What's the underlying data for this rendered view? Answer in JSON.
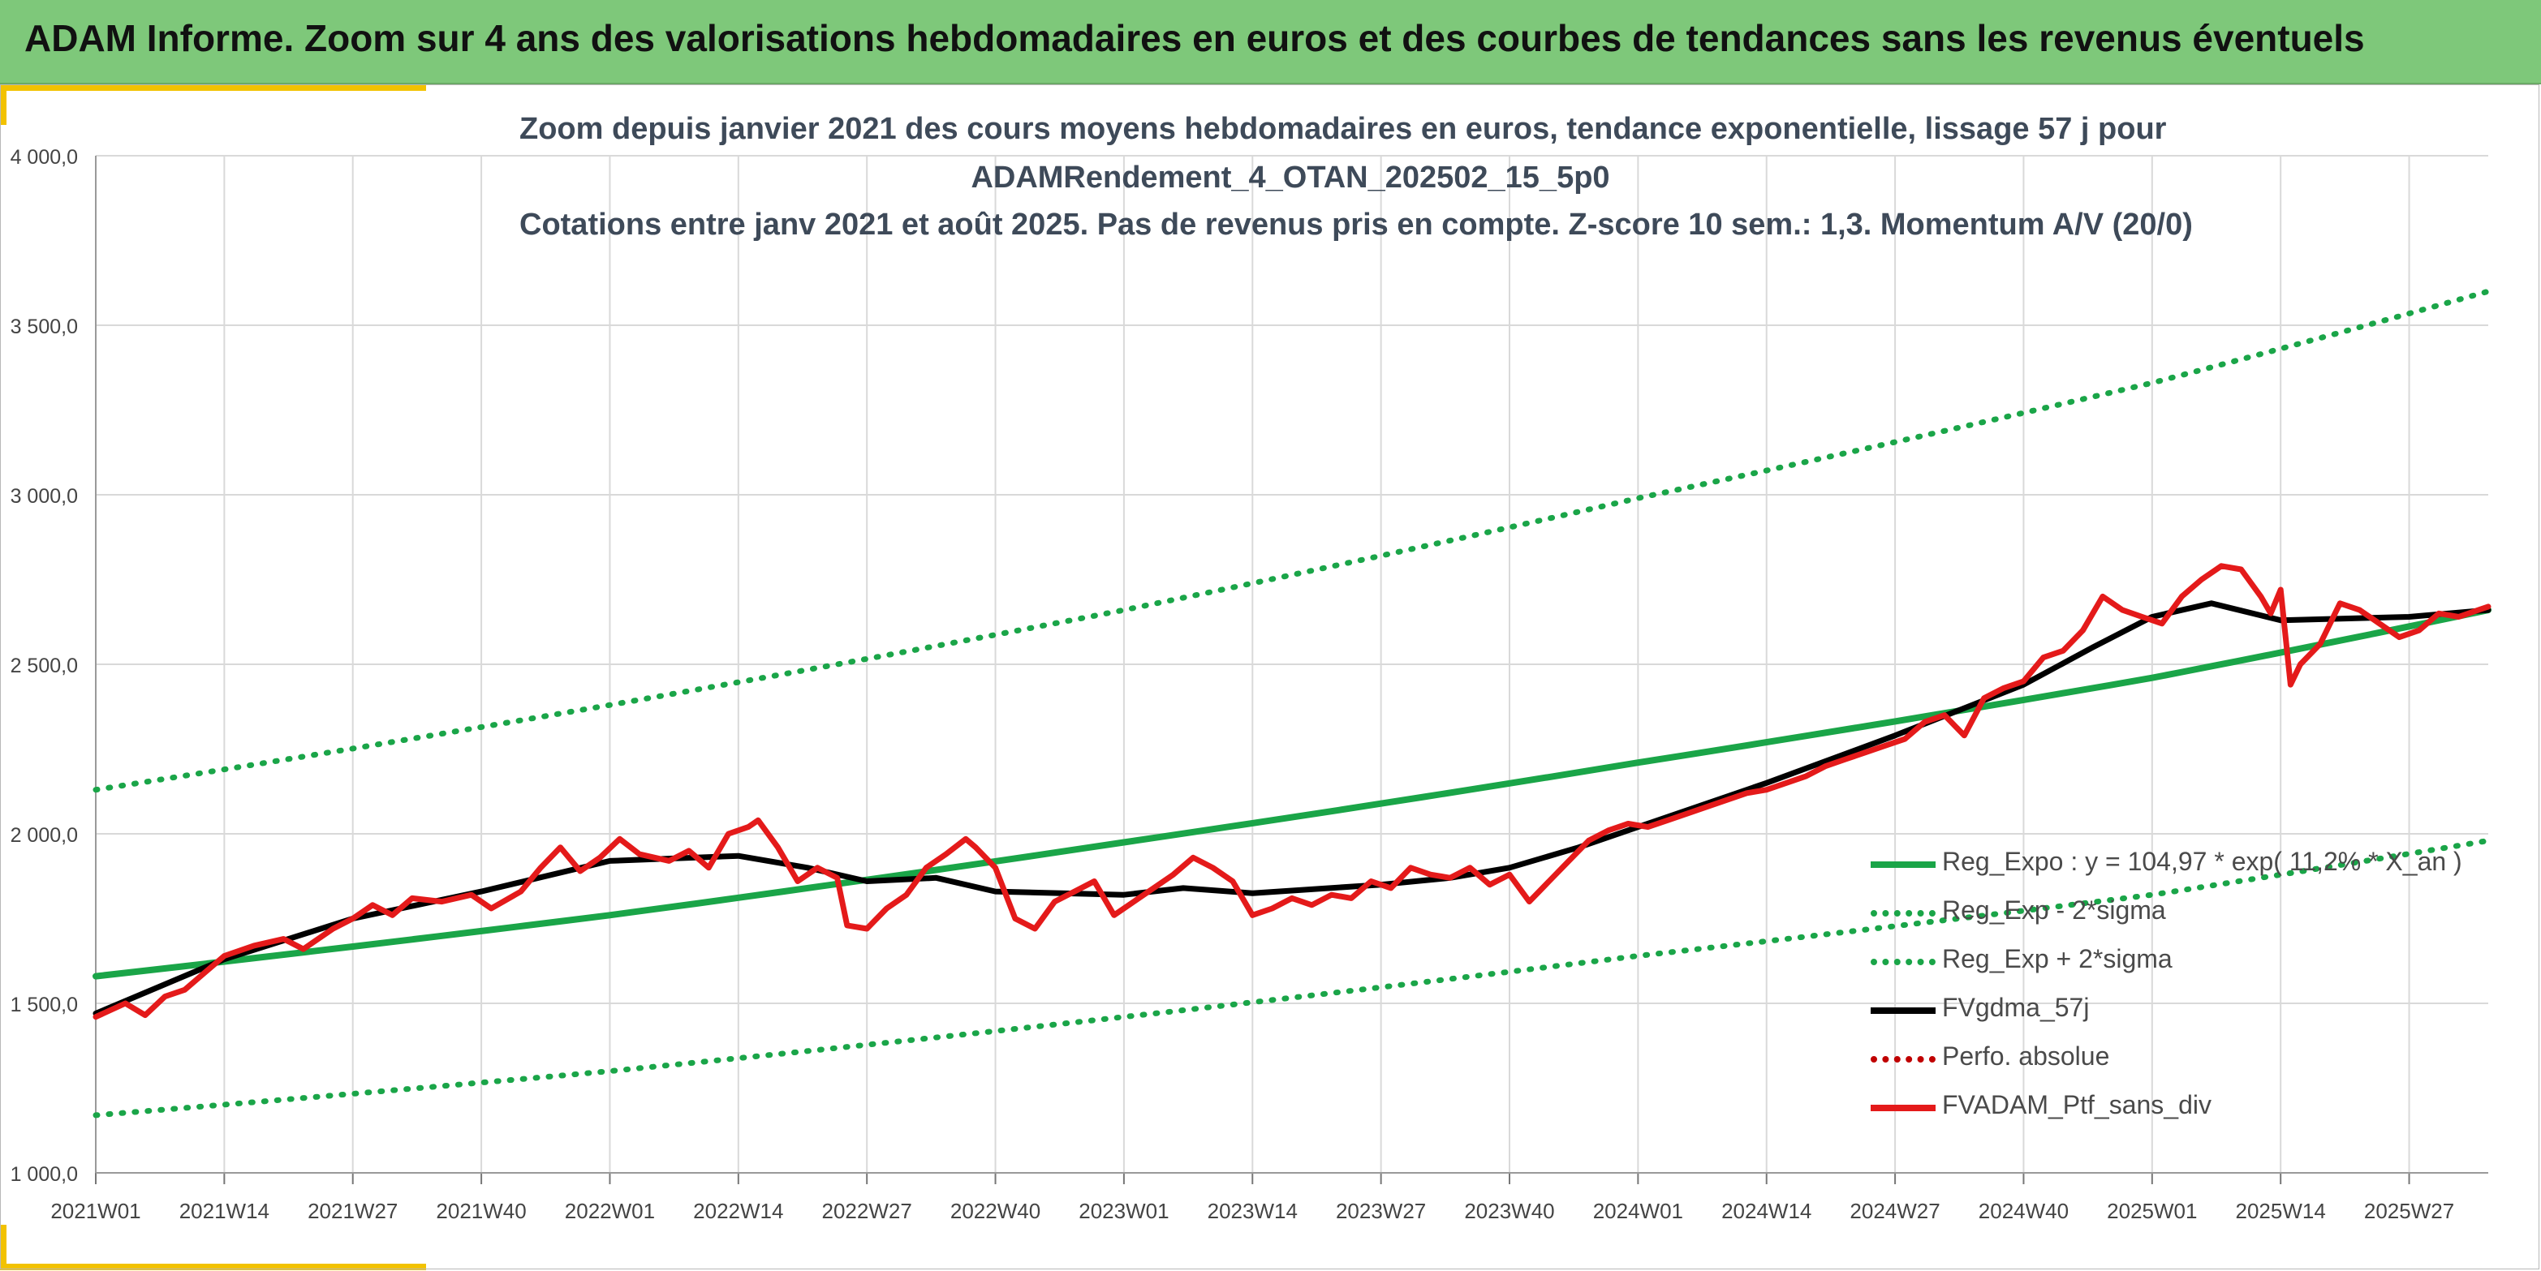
{
  "banner": {
    "title": "ADAM Informe. Zoom sur 4 ans des valorisations hebdomadaires en euros et des courbes de tendances sans les revenus éventuels"
  },
  "colors": {
    "banner": "#7ec87a",
    "accent": "#f2c200",
    "reg_expo": "#1aa548",
    "sigma": "#1aa548",
    "gdma": "#000000",
    "perfo": "#c00000",
    "ptf": "#e41a1a"
  },
  "chart_data": {
    "type": "line",
    "title_lines": [
      "Zoom depuis janvier 2021 des cours moyens hebdomadaires en euros, tendance exponentielle, lissage 57 j pour",
      "ADAMRendement_4_OTAN_202502_15_5p0",
      "Cotations entre janv 2021 et août 2025. Pas de revenus pris en compte. Z-score 10 sem.: 1,3. Momentum A/V (20/0)"
    ],
    "ylim": [
      1000,
      4000
    ],
    "y_ticks": [
      "1 000,0",
      "1 500,0",
      "2 000,0",
      "2 500,0",
      "3 000,0",
      "3 500,0",
      "4 000,0"
    ],
    "x_range_weeks": [
      0,
      242
    ],
    "x_ticks": [
      {
        "label": "2021W01",
        "week": 0
      },
      {
        "label": "2021W14",
        "week": 13
      },
      {
        "label": "2021W27",
        "week": 26
      },
      {
        "label": "2021W40",
        "week": 39
      },
      {
        "label": "2022W01",
        "week": 52
      },
      {
        "label": "2022W14",
        "week": 65
      },
      {
        "label": "2022W27",
        "week": 78
      },
      {
        "label": "2022W40",
        "week": 91
      },
      {
        "label": "2023W01",
        "week": 104
      },
      {
        "label": "2023W14",
        "week": 117
      },
      {
        "label": "2023W27",
        "week": 130
      },
      {
        "label": "2023W40",
        "week": 143
      },
      {
        "label": "2024W01",
        "week": 156
      },
      {
        "label": "2024W14",
        "week": 169
      },
      {
        "label": "2024W27",
        "week": 182
      },
      {
        "label": "2024W40",
        "week": 195
      },
      {
        "label": "2025W01",
        "week": 208
      },
      {
        "label": "2025W14",
        "week": 221
      },
      {
        "label": "2025W27",
        "week": 234
      }
    ],
    "grid": true,
    "legend_position": "bottom-right",
    "series": [
      {
        "name": "Reg_Expo : y = 104,97 * exp( 11,2% *  X_an )",
        "style": "solid",
        "color": "#1aa548",
        "points": [
          [
            0,
            1580
          ],
          [
            52,
            1760
          ],
          [
            104,
            1975
          ],
          [
            156,
            2210
          ],
          [
            208,
            2460
          ],
          [
            242,
            2660
          ]
        ]
      },
      {
        "name": "Reg_Exp - 2*sigma",
        "style": "dotted",
        "color": "#1aa548",
        "points": [
          [
            0,
            1170
          ],
          [
            52,
            1300
          ],
          [
            104,
            1460
          ],
          [
            156,
            1640
          ],
          [
            208,
            1820
          ],
          [
            242,
            1980
          ]
        ]
      },
      {
        "name": "Reg_Exp + 2*sigma",
        "style": "dotted",
        "color": "#1aa548",
        "points": [
          [
            0,
            2130
          ],
          [
            52,
            2380
          ],
          [
            104,
            2660
          ],
          [
            156,
            2990
          ],
          [
            208,
            3330
          ],
          [
            242,
            3600
          ]
        ]
      },
      {
        "name": "FVgdma_57j",
        "style": "solid",
        "color": "#000000",
        "points": [
          [
            0,
            1470
          ],
          [
            13,
            1630
          ],
          [
            26,
            1750
          ],
          [
            39,
            1830
          ],
          [
            52,
            1920
          ],
          [
            65,
            1935
          ],
          [
            72,
            1900
          ],
          [
            78,
            1860
          ],
          [
            85,
            1870
          ],
          [
            91,
            1830
          ],
          [
            104,
            1820
          ],
          [
            110,
            1840
          ],
          [
            117,
            1825
          ],
          [
            130,
            1850
          ],
          [
            137,
            1870
          ],
          [
            143,
            1900
          ],
          [
            150,
            1960
          ],
          [
            156,
            2020
          ],
          [
            169,
            2150
          ],
          [
            182,
            2290
          ],
          [
            195,
            2440
          ],
          [
            202,
            2550
          ],
          [
            208,
            2640
          ],
          [
            214,
            2680
          ],
          [
            221,
            2630
          ],
          [
            234,
            2640
          ],
          [
            242,
            2660
          ]
        ]
      },
      {
        "name": "Perfo. absolue",
        "style": "dotted",
        "color": "#c00000",
        "points": []
      },
      {
        "name": "FVADAM_Ptf_sans_div",
        "style": "solid",
        "color": "#e41a1a",
        "points": [
          [
            0,
            1460
          ],
          [
            3,
            1500
          ],
          [
            5,
            1465
          ],
          [
            7,
            1520
          ],
          [
            9,
            1540
          ],
          [
            11,
            1590
          ],
          [
            13,
            1640
          ],
          [
            16,
            1670
          ],
          [
            19,
            1690
          ],
          [
            21,
            1660
          ],
          [
            24,
            1720
          ],
          [
            26,
            1750
          ],
          [
            28,
            1790
          ],
          [
            30,
            1760
          ],
          [
            32,
            1810
          ],
          [
            35,
            1800
          ],
          [
            38,
            1820
          ],
          [
            40,
            1780
          ],
          [
            43,
            1830
          ],
          [
            45,
            1900
          ],
          [
            47,
            1960
          ],
          [
            49,
            1890
          ],
          [
            51,
            1930
          ],
          [
            53,
            1985
          ],
          [
            55,
            1940
          ],
          [
            58,
            1920
          ],
          [
            60,
            1950
          ],
          [
            62,
            1900
          ],
          [
            64,
            2000
          ],
          [
            66,
            2020
          ],
          [
            67,
            2040
          ],
          [
            69,
            1960
          ],
          [
            71,
            1860
          ],
          [
            73,
            1900
          ],
          [
            75,
            1870
          ],
          [
            76,
            1730
          ],
          [
            78,
            1720
          ],
          [
            80,
            1780
          ],
          [
            82,
            1820
          ],
          [
            84,
            1900
          ],
          [
            86,
            1940
          ],
          [
            88,
            1985
          ],
          [
            89,
            1960
          ],
          [
            91,
            1900
          ],
          [
            93,
            1750
          ],
          [
            95,
            1720
          ],
          [
            97,
            1800
          ],
          [
            99,
            1830
          ],
          [
            101,
            1860
          ],
          [
            103,
            1760
          ],
          [
            105,
            1800
          ],
          [
            107,
            1840
          ],
          [
            109,
            1880
          ],
          [
            111,
            1930
          ],
          [
            113,
            1900
          ],
          [
            115,
            1860
          ],
          [
            117,
            1760
          ],
          [
            119,
            1780
          ],
          [
            121,
            1810
          ],
          [
            123,
            1790
          ],
          [
            125,
            1820
          ],
          [
            127,
            1810
          ],
          [
            129,
            1860
          ],
          [
            131,
            1840
          ],
          [
            133,
            1900
          ],
          [
            135,
            1880
          ],
          [
            137,
            1870
          ],
          [
            139,
            1900
          ],
          [
            141,
            1850
          ],
          [
            143,
            1880
          ],
          [
            145,
            1800
          ],
          [
            147,
            1860
          ],
          [
            149,
            1920
          ],
          [
            151,
            1980
          ],
          [
            153,
            2010
          ],
          [
            155,
            2030
          ],
          [
            157,
            2020
          ],
          [
            159,
            2040
          ],
          [
            161,
            2060
          ],
          [
            163,
            2080
          ],
          [
            165,
            2100
          ],
          [
            167,
            2120
          ],
          [
            169,
            2130
          ],
          [
            171,
            2150
          ],
          [
            173,
            2170
          ],
          [
            175,
            2200
          ],
          [
            177,
            2220
          ],
          [
            179,
            2240
          ],
          [
            181,
            2260
          ],
          [
            183,
            2280
          ],
          [
            185,
            2330
          ],
          [
            187,
            2350
          ],
          [
            189,
            2290
          ],
          [
            191,
            2400
          ],
          [
            193,
            2430
          ],
          [
            195,
            2450
          ],
          [
            197,
            2520
          ],
          [
            199,
            2540
          ],
          [
            201,
            2600
          ],
          [
            203,
            2700
          ],
          [
            205,
            2660
          ],
          [
            207,
            2640
          ],
          [
            209,
            2620
          ],
          [
            211,
            2700
          ],
          [
            213,
            2750
          ],
          [
            215,
            2790
          ],
          [
            217,
            2780
          ],
          [
            219,
            2700
          ],
          [
            220,
            2650
          ],
          [
            221,
            2720
          ],
          [
            222,
            2440
          ],
          [
            223,
            2500
          ],
          [
            225,
            2560
          ],
          [
            227,
            2680
          ],
          [
            229,
            2660
          ],
          [
            231,
            2620
          ],
          [
            233,
            2580
          ],
          [
            235,
            2600
          ],
          [
            237,
            2650
          ],
          [
            239,
            2640
          ],
          [
            241,
            2660
          ],
          [
            242,
            2670
          ]
        ]
      }
    ]
  }
}
